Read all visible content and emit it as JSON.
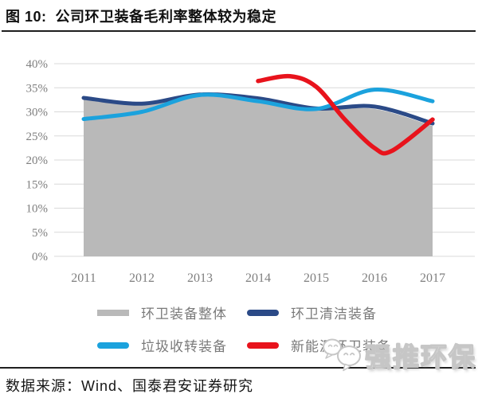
{
  "figure": {
    "title": "图 10:  公司环卫装备毛利率整体较为稳定"
  },
  "source_note": "数据来源：Wind、国泰君安证券研究",
  "watermark": {
    "text": "强推环保",
    "icon": "chat-bubbles-icon"
  },
  "chart_data": {
    "type": "area+line",
    "title": "公司环卫装备毛利率整体较为稳定",
    "xlabel": "",
    "ylabel": "",
    "categories": [
      "2011",
      "2012",
      "2013",
      "2014",
      "2015",
      "2016",
      "2017"
    ],
    "x_range": [
      2011,
      2017
    ],
    "ylim": [
      0,
      40
    ],
    "y_ticks": [
      "0%",
      "5%",
      "10%",
      "15%",
      "20%",
      "25%",
      "30%",
      "35%",
      "40%"
    ],
    "grid": "horizontal",
    "legend_position": "bottom",
    "colors": {
      "grid": "#d9d9d9",
      "tick_text": "#7f7f7f"
    },
    "series": [
      {
        "name": "环卫装备整体",
        "type": "area",
        "color": "#b9b9b9",
        "values": [
          32.5,
          31.4,
          33.2,
          32.3,
          30.5,
          30.6,
          27.1
        ]
      },
      {
        "name": "环卫清洁装备",
        "type": "line",
        "color": "#2b4a87",
        "width": 5,
        "values": [
          32.9,
          31.7,
          33.6,
          32.8,
          30.7,
          31.1,
          27.6
        ]
      },
      {
        "name": "垃圾收转装备",
        "type": "line",
        "color": "#1ba2dd",
        "width": 5,
        "values": [
          28.5,
          30.0,
          33.5,
          32.2,
          30.6,
          34.6,
          32.2
        ]
      },
      {
        "name": "新能源环卫装备",
        "type": "line",
        "color": "#e8131c",
        "width": 5.5,
        "values": [
          null,
          null,
          null,
          36.4,
          35.2,
          22.5,
          28.4
        ],
        "draw_points": [
          [
            2014,
            36.4
          ],
          [
            2014.55,
            37.4
          ],
          [
            2015,
            35.2
          ],
          [
            2015.5,
            28.3
          ],
          [
            2016,
            22.5
          ],
          [
            2016.3,
            21.9
          ],
          [
            2017,
            28.4
          ]
        ]
      }
    ]
  }
}
